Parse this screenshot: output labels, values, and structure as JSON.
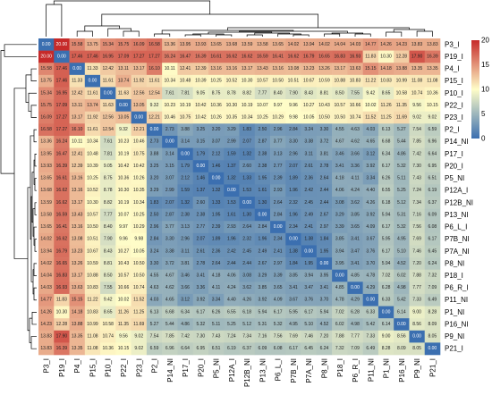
{
  "chart_data": {
    "type": "heatmap",
    "title": "",
    "labels": [
      "P3_I",
      "P19_I",
      "P4_I",
      "P15_I",
      "P10_I",
      "P22_I",
      "P23_I",
      "P2_I",
      "P14_NI",
      "P17_I",
      "P20_I",
      "P5_NI",
      "P12A_I",
      "P12B_NI",
      "P13_NI",
      "P6_L_I",
      "P7B_NI",
      "P7A_NI",
      "P8_NI",
      "P18_I",
      "P6_R_I",
      "P11_NI",
      "P1_NI",
      "P16_NI",
      "P9_NI",
      "P21_I"
    ],
    "values": [
      [
        0.0,
        20.0,
        15.58,
        13.75,
        15.34,
        15.75,
        16.09,
        16.58,
        13.36,
        13.95,
        13.93,
        13.65,
        13.68,
        13.59,
        13.58,
        13.65,
        14.02,
        13.94,
        14.02,
        14.04,
        14.03,
        14.77,
        14.26,
        14.23,
        13.83,
        13.83
      ],
      [
        20.0,
        0.0,
        17.46,
        17.46,
        16.95,
        17.09,
        17.27,
        17.27,
        16.24,
        16.47,
        16.39,
        16.61,
        16.62,
        16.62,
        16.59,
        16.41,
        16.62,
        16.79,
        16.65,
        16.83,
        16.93,
        11.83,
        10.3,
        12.28,
        17.9,
        16.39
      ],
      [
        15.58,
        17.46,
        0.0,
        11.33,
        12.42,
        13.11,
        13.17,
        16.1,
        10.11,
        12.41,
        12.39,
        13.16,
        13.16,
        13.17,
        13.43,
        13.16,
        13.08,
        13.23,
        13.26,
        13.17,
        13.63,
        15.15,
        14.18,
        13.88,
        13.35,
        13.35
      ],
      [
        13.75,
        17.46,
        11.33,
        0.0,
        11.61,
        13.74,
        11.92,
        11.61,
        10.34,
        10.48,
        10.39,
        10.25,
        10.52,
        10.3,
        10.57,
        10.5,
        10.51,
        10.67,
        10.59,
        10.88,
        10.83,
        11.22,
        10.83,
        10.99,
        11.08,
        11.08
      ],
      [
        15.34,
        16.95,
        12.42,
        11.61,
        0.0,
        11.63,
        12.56,
        12.54,
        7.61,
        7.81,
        9.05,
        8.75,
        8.78,
        8.82,
        7.77,
        8.4,
        7.9,
        8.43,
        8.81,
        8.5,
        7.55,
        9.42,
        8.65,
        10.58,
        10.74,
        10.36
      ],
      [
        15.75,
        17.09,
        13.11,
        13.74,
        11.63,
        0.0,
        13.05,
        9.32,
        10.23,
        10.19,
        10.42,
        10.36,
        10.3,
        10.19,
        10.07,
        9.97,
        9.96,
        10.27,
        10.43,
        10.57,
        10.66,
        10.02,
        11.26,
        11.35,
        9.56,
        10.15
      ],
      [
        16.09,
        17.27,
        13.17,
        11.92,
        12.56,
        13.05,
        0.0,
        12.21,
        10.46,
        10.75,
        10.42,
        10.26,
        10.35,
        10.34,
        10.25,
        10.29,
        9.98,
        10.05,
        10.5,
        10.5,
        10.74,
        11.52,
        11.25,
        11.69,
        9.02,
        9.02
      ],
      [
        16.58,
        17.27,
        16.1,
        11.61,
        12.54,
        9.32,
        12.21,
        0.0,
        2.73,
        3.88,
        3.25,
        3.2,
        3.29,
        1.83,
        2.5,
        2.96,
        2.84,
        3.24,
        3.3,
        4.55,
        4.63,
        4.03,
        6.13,
        5.27,
        7.54,
        6.59
      ],
      [
        13.36,
        16.24,
        10.11,
        10.34,
        7.61,
        10.23,
        10.46,
        2.73,
        0.0,
        3.14,
        3.15,
        3.07,
        2.99,
        2.07,
        2.87,
        3.77,
        3.3,
        3.38,
        3.72,
        4.67,
        4.62,
        4.65,
        6.68,
        5.44,
        7.85,
        6.96
      ],
      [
        13.95,
        16.47,
        12.41,
        10.48,
        7.81,
        10.19,
        10.75,
        3.88,
        3.14,
        0.0,
        1.79,
        2.12,
        1.59,
        1.32,
        2.38,
        3.13,
        2.96,
        3.11,
        3.81,
        3.46,
        3.66,
        3.12,
        6.34,
        4.86,
        7.42,
        6.64
      ],
      [
        13.93,
        16.39,
        12.39,
        10.39,
        9.05,
        10.42,
        10.42,
        3.25,
        3.15,
        1.79,
        0.0,
        1.46,
        1.37,
        2.6,
        2.38,
        2.77,
        2.07,
        2.61,
        2.78,
        3.41,
        3.36,
        3.92,
        6.17,
        5.32,
        7.3,
        6.95
      ],
      [
        13.65,
        16.61,
        13.16,
        10.25,
        8.75,
        10.36,
        10.26,
        3.2,
        3.07,
        2.12,
        1.46,
        0.0,
        1.32,
        1.33,
        1.95,
        2.39,
        1.89,
        2.36,
        2.64,
        4.18,
        4.11,
        3.34,
        6.26,
        5.11,
        7.43,
        6.51
      ],
      [
        13.68,
        16.62,
        13.16,
        10.52,
        8.78,
        10.3,
        10.35,
        3.29,
        2.99,
        1.59,
        1.37,
        1.32,
        0.0,
        1.53,
        1.61,
        2.93,
        1.96,
        2.42,
        2.44,
        4.06,
        4.24,
        4.4,
        6.55,
        5.25,
        7.24,
        6.19
      ],
      [
        13.59,
        16.62,
        13.17,
        10.3,
        8.82,
        10.19,
        10.34,
        1.83,
        2.07,
        1.32,
        2.6,
        1.33,
        1.53,
        0.0,
        1.3,
        2.64,
        2.32,
        2.45,
        2.44,
        3.08,
        3.62,
        4.26,
        6.18,
        5.12,
        7.34,
        6.37
      ],
      [
        13.58,
        16.59,
        13.43,
        10.57,
        7.77,
        10.07,
        10.25,
        2.5,
        2.87,
        2.38,
        2.38,
        1.95,
        1.61,
        1.3,
        0.0,
        2.84,
        1.96,
        2.49,
        2.67,
        3.29,
        3.85,
        3.92,
        5.94,
        5.31,
        7.16,
        6.09
      ],
      [
        13.65,
        16.41,
        13.16,
        10.5,
        8.4,
        9.97,
        10.29,
        2.96,
        3.77,
        3.13,
        2.77,
        2.39,
        2.93,
        2.64,
        2.84,
        0.0,
        2.34,
        2.41,
        2.97,
        3.39,
        3.65,
        4.09,
        6.17,
        5.32,
        7.56,
        6.08
      ],
      [
        14.02,
        16.62,
        13.08,
        10.51,
        7.9,
        9.96,
        9.98,
        2.84,
        3.3,
        2.96,
        2.07,
        1.89,
        1.96,
        2.32,
        1.96,
        2.34,
        0.0,
        1.38,
        1.84,
        3.85,
        3.41,
        3.67,
        5.95,
        4.95,
        7.69,
        6.17
      ],
      [
        13.94,
        16.79,
        13.23,
        10.67,
        8.43,
        10.27,
        10.05,
        3.24,
        3.38,
        3.11,
        2.61,
        2.36,
        2.42,
        2.45,
        2.49,
        2.41,
        1.38,
        0.0,
        1.95,
        3.94,
        3.47,
        3.76,
        6.17,
        5.1,
        7.46,
        6.45
      ],
      [
        14.02,
        16.65,
        13.26,
        10.59,
        8.81,
        10.43,
        10.5,
        3.3,
        3.72,
        3.81,
        2.78,
        2.64,
        2.44,
        2.44,
        2.67,
        2.97,
        1.84,
        1.95,
        0.0,
        3.95,
        3.41,
        3.7,
        5.94,
        4.52,
        7.2,
        6.24
      ],
      [
        14.04,
        16.83,
        13.17,
        10.88,
        8.5,
        10.57,
        10.5,
        4.55,
        4.67,
        3.46,
        3.41,
        4.18,
        4.06,
        3.08,
        3.29,
        3.39,
        3.85,
        3.94,
        3.95,
        0.0,
        4.85,
        4.78,
        7.02,
        6.02,
        7.88,
        7.32
      ],
      [
        14.03,
        16.93,
        13.63,
        10.83,
        7.55,
        10.66,
        10.74,
        4.63,
        4.62,
        3.66,
        3.36,
        4.11,
        4.24,
        3.62,
        3.85,
        3.65,
        3.41,
        3.47,
        3.41,
        4.85,
        0.0,
        4.29,
        6.28,
        4.98,
        7.77,
        7.09
      ],
      [
        14.77,
        11.83,
        15.15,
        11.22,
        9.42,
        10.02,
        11.52,
        4.03,
        4.65,
        3.12,
        3.92,
        3.34,
        4.4,
        4.26,
        3.92,
        4.09,
        3.67,
        3.76,
        3.7,
        4.78,
        4.29,
        0.0,
        6.33,
        5.42,
        7.33,
        6.49
      ],
      [
        14.26,
        10.3,
        14.18,
        10.83,
        8.65,
        11.26,
        11.25,
        6.13,
        6.68,
        6.34,
        6.17,
        6.26,
        6.55,
        6.18,
        5.94,
        6.17,
        5.95,
        6.17,
        5.94,
        7.02,
        6.28,
        6.33,
        0.0,
        6.14,
        9.0,
        8.28
      ],
      [
        14.23,
        12.28,
        13.88,
        10.99,
        10.58,
        11.35,
        11.69,
        5.27,
        5.44,
        4.86,
        5.32,
        5.11,
        5.25,
        5.12,
        5.31,
        5.32,
        4.95,
        5.1,
        4.52,
        6.02,
        4.98,
        5.42,
        6.14,
        0.0,
        8.56,
        8.09
      ],
      [
        13.83,
        17.9,
        13.35,
        11.08,
        10.74,
        9.56,
        9.02,
        7.54,
        7.85,
        7.42,
        7.3,
        7.43,
        7.24,
        7.34,
        7.16,
        7.56,
        7.69,
        7.46,
        7.2,
        7.88,
        7.77,
        7.33,
        9.0,
        8.56,
        0.0,
        8.05
      ],
      [
        13.83,
        16.39,
        13.35,
        11.08,
        10.36,
        10.15,
        9.02,
        6.59,
        6.96,
        6.64,
        6.95,
        6.51,
        6.19,
        6.37,
        6.09,
        6.08,
        6.17,
        6.45,
        6.24,
        7.32,
        7.09,
        6.49,
        8.28,
        8.09,
        8.05,
        0.0
      ]
    ],
    "colorbar": {
      "range": [
        0,
        20
      ],
      "ticks": [
        "0",
        "5",
        "10",
        "15",
        "20"
      ],
      "colors": {
        "low": "#3b6fb0",
        "mid": "#fffdc8",
        "high": "#c62a2a"
      }
    },
    "row_dendrogram": true,
    "col_dendrogram": true
  }
}
